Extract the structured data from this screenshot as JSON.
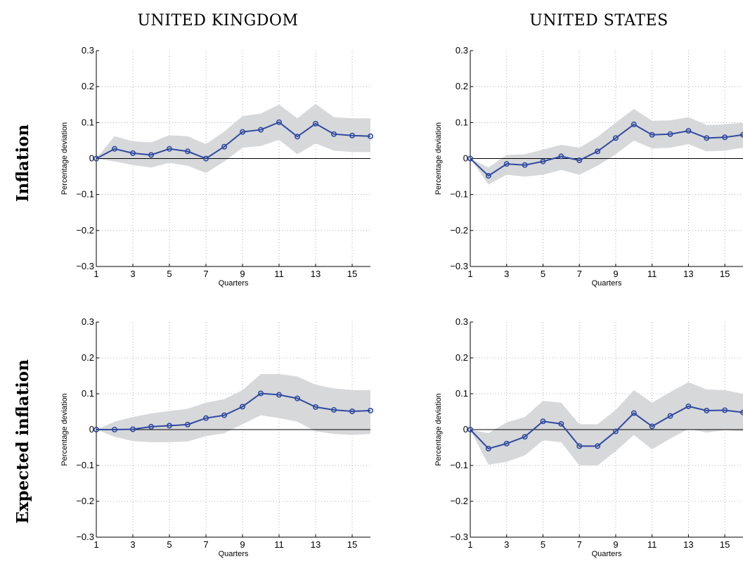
{
  "column_titles": [
    "UNITED KINGDOM",
    "UNITED STATES"
  ],
  "row_titles": [
    "Inflation",
    "Expected inflation"
  ],
  "colors": {
    "line": "#2f4aa0",
    "band": "#d7d8da",
    "grid": "#9a9a9a",
    "zero_line": "#000000"
  },
  "chart_data": [
    {
      "type": "line",
      "column": "UNITED KINGDOM",
      "row": "Inflation",
      "xlabel": "Quarters",
      "ylabel": "Percentage deviation",
      "xlim": [
        1,
        16
      ],
      "ylim": [
        -0.3,
        0.3
      ],
      "xticks": [
        1,
        3,
        5,
        7,
        9,
        11,
        13,
        15
      ],
      "yticks": [
        -0.3,
        -0.2,
        -0.1,
        0,
        0.1,
        0.2,
        0.3
      ],
      "ytick_labels": [
        "−0.3",
        "−0.2",
        "−0.1",
        "0",
        "0.1",
        "0.2",
        "0.3"
      ],
      "grid": true,
      "x": [
        1,
        2,
        3,
        4,
        5,
        6,
        7,
        8,
        9,
        10,
        11,
        12,
        13,
        14,
        15,
        16
      ],
      "series": [
        {
          "values": [
            0,
            0.027,
            0.015,
            0.01,
            0.027,
            0.02,
            0.0,
            0.033,
            0.074,
            0.08,
            0.101,
            0.061,
            0.097,
            0.068,
            0.064,
            0.062
          ]
        }
      ],
      "band_upper": [
        0,
        0.062,
        0.048,
        0.045,
        0.065,
        0.062,
        0.04,
        0.075,
        0.118,
        0.125,
        0.15,
        0.112,
        0.152,
        0.115,
        0.112,
        0.112
      ],
      "band_lower": [
        0,
        -0.008,
        -0.018,
        -0.025,
        -0.012,
        -0.02,
        -0.04,
        -0.008,
        0.03,
        0.035,
        0.052,
        0.012,
        0.042,
        0.022,
        0.018,
        0.018
      ]
    },
    {
      "type": "line",
      "column": "UNITED STATES",
      "row": "Inflation",
      "xlabel": "Quarters",
      "ylabel": "Percentage deviation",
      "xlim": [
        1,
        16
      ],
      "ylim": [
        -0.3,
        0.3
      ],
      "xticks": [
        1,
        3,
        5,
        7,
        9,
        11,
        13,
        15
      ],
      "yticks": [
        -0.3,
        -0.2,
        -0.1,
        0,
        0.1,
        0.2,
        0.3
      ],
      "ytick_labels": [
        "−0.3",
        "−0.2",
        "−0.1",
        "0",
        "0.1",
        "0.2",
        "0.3"
      ],
      "grid": true,
      "x": [
        1,
        2,
        3,
        4,
        5,
        6,
        7,
        8,
        9,
        10,
        11,
        12,
        13,
        14,
        15,
        16
      ],
      "series": [
        {
          "values": [
            0,
            -0.048,
            -0.015,
            -0.018,
            -0.008,
            0.006,
            -0.005,
            0.02,
            0.057,
            0.095,
            0.066,
            0.068,
            0.077,
            0.057,
            0.059,
            0.066
          ]
        }
      ],
      "band_upper": [
        0,
        -0.025,
        0.01,
        0.012,
        0.025,
        0.038,
        0.03,
        0.06,
        0.1,
        0.138,
        0.105,
        0.106,
        0.115,
        0.093,
        0.095,
        0.1
      ],
      "band_lower": [
        0,
        -0.072,
        -0.045,
        -0.05,
        -0.045,
        -0.032,
        -0.045,
        -0.02,
        0.012,
        0.05,
        0.028,
        0.03,
        0.04,
        0.02,
        0.022,
        0.03
      ]
    },
    {
      "type": "line",
      "column": "UNITED KINGDOM",
      "row": "Expected inflation",
      "xlabel": "Quarters",
      "ylabel": "Percentage deviation",
      "xlim": [
        1,
        16
      ],
      "ylim": [
        -0.3,
        0.3
      ],
      "xticks": [
        1,
        3,
        5,
        7,
        9,
        11,
        13,
        15
      ],
      "yticks": [
        -0.3,
        -0.2,
        -0.1,
        0,
        0.1,
        0.2,
        0.3
      ],
      "ytick_labels": [
        "−0.3",
        "−0.2",
        "−0.1",
        "0",
        "0.1",
        "0.2",
        "0.3"
      ],
      "grid": true,
      "x": [
        1,
        2,
        3,
        4,
        5,
        6,
        7,
        8,
        9,
        10,
        11,
        12,
        13,
        14,
        15,
        16
      ],
      "series": [
        {
          "values": [
            0,
            0.0,
            0.001,
            0.008,
            0.011,
            0.014,
            0.032,
            0.04,
            0.064,
            0.101,
            0.097,
            0.087,
            0.063,
            0.055,
            0.051,
            0.053
          ]
        }
      ],
      "band_upper": [
        0,
        0.022,
        0.035,
        0.045,
        0.052,
        0.058,
        0.075,
        0.085,
        0.11,
        0.155,
        0.155,
        0.148,
        0.125,
        0.115,
        0.11,
        0.11
      ],
      "band_lower": [
        0,
        -0.02,
        -0.032,
        -0.035,
        -0.035,
        -0.033,
        -0.018,
        -0.01,
        0.015,
        0.04,
        0.032,
        0.022,
        -0.005,
        -0.012,
        -0.015,
        -0.012
      ]
    },
    {
      "type": "line",
      "column": "UNITED STATES",
      "row": "Expected inflation",
      "xlabel": "Quarters",
      "ylabel": "Percentage deviation",
      "xlim": [
        1,
        16
      ],
      "ylim": [
        -0.3,
        0.3
      ],
      "xticks": [
        1,
        3,
        5,
        7,
        9,
        11,
        13,
        15
      ],
      "yticks": [
        -0.3,
        -0.2,
        -0.1,
        0,
        0.1,
        0.2,
        0.3
      ],
      "ytick_labels": [
        "−0.3",
        "−0.2",
        "−0.1",
        "0",
        "0.1",
        "0.2",
        "0.3"
      ],
      "grid": true,
      "x": [
        1,
        2,
        3,
        4,
        5,
        6,
        7,
        8,
        9,
        10,
        11,
        12,
        13,
        14,
        15,
        16
      ],
      "series": [
        {
          "values": [
            0,
            -0.053,
            -0.039,
            -0.02,
            0.023,
            0.016,
            -0.046,
            -0.046,
            -0.005,
            0.046,
            0.009,
            0.038,
            0.065,
            0.053,
            0.054,
            0.048
          ]
        }
      ],
      "band_upper": [
        0,
        -0.01,
        0.02,
        0.035,
        0.08,
        0.075,
        0.015,
        0.015,
        0.055,
        0.11,
        0.075,
        0.105,
        0.132,
        0.112,
        0.11,
        0.1
      ],
      "band_lower": [
        0,
        -0.098,
        -0.09,
        -0.072,
        -0.03,
        -0.035,
        -0.1,
        -0.1,
        -0.06,
        -0.015,
        -0.055,
        -0.025,
        0.002,
        -0.008,
        -0.002,
        -0.005
      ]
    }
  ]
}
